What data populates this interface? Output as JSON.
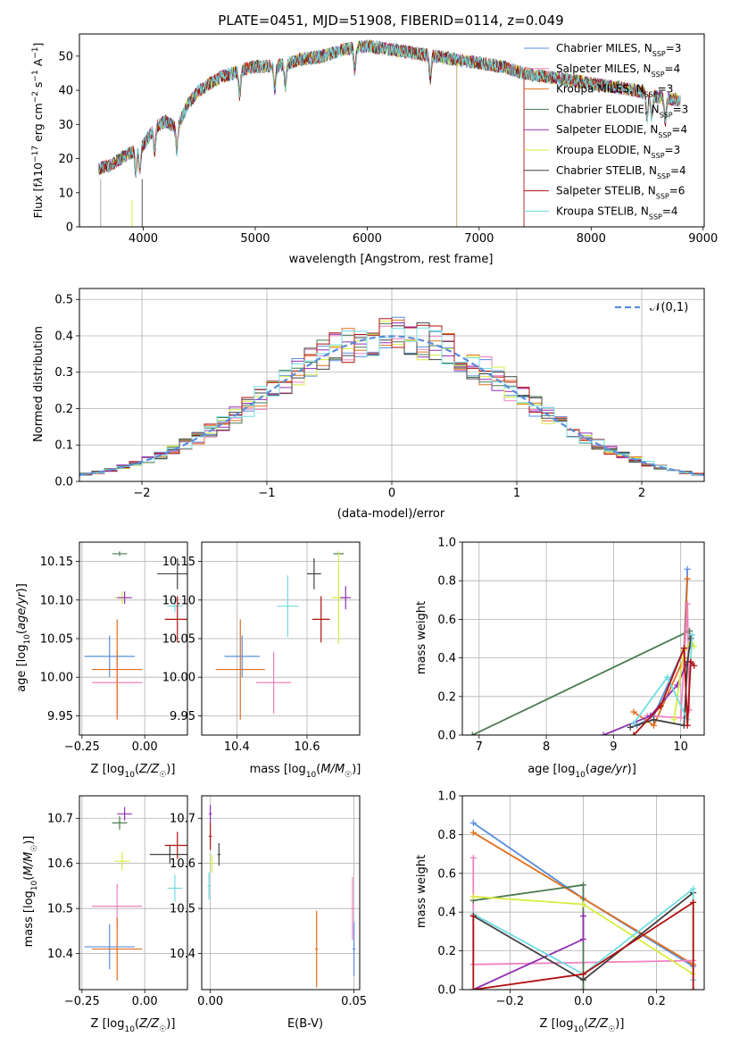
{
  "colors": {
    "Chabrier MILES": "#5a8ddc",
    "Salpeter MILES": "#ee82c0",
    "Kroupa MILES": "#e07020",
    "Chabrier ELODIE": "#4a7a50",
    "Salpeter ELODIE": "#9030b0",
    "Kroupa ELODIE": "#d8ec40",
    "Chabrier STELIB": "#404040",
    "Salpeter STELIB": "#b01010",
    "Kroupa STELIB": "#70dce0",
    "normal": "#5a8ddc"
  },
  "chart_data": [
    {
      "id": "spectrum",
      "type": "line",
      "title": "PLATE=0451, MJD=51908, FIBERID=0114, z=0.049",
      "xlabel": "wavelength [Angstrom, rest frame]",
      "ylabel": "Flux [fλ10⁻¹⁷ erg cm⁻² s⁻¹ A⁻¹]",
      "xlim": [
        3430,
        9010
      ],
      "ylim": [
        0,
        56.5
      ],
      "xticks": [
        4000,
        5000,
        6000,
        7000,
        8000,
        9000
      ],
      "yticks": [
        0,
        10,
        20,
        30,
        40,
        50
      ],
      "legend": "top-right",
      "series_names": [
        "Chabrier MILES",
        "Salpeter MILES",
        "Kroupa MILES",
        "Chabrier ELODIE",
        "Salpeter ELODIE",
        "Kroupa ELODIE",
        "Chabrier STELIB",
        "Salpeter STELIB",
        "Kroupa STELIB"
      ],
      "legend_labels": [
        {
          "name": "Chabrier MILES",
          "n": "3"
        },
        {
          "name": "Salpeter MILES",
          "n": "4"
        },
        {
          "name": "Kroupa MILES",
          "n": "3"
        },
        {
          "name": "Chabrier ELODIE",
          "n": "3"
        },
        {
          "name": "Salpeter ELODIE",
          "n": "4"
        },
        {
          "name": "Kroupa ELODIE",
          "n": "3"
        },
        {
          "name": "Chabrier STELIB",
          "n": "4"
        },
        {
          "name": "Salpeter STELIB",
          "n": "6"
        },
        {
          "name": "Kroupa STELIB",
          "n": "4"
        }
      ],
      "continuum": {
        "x": [
          3600,
          3700,
          3800,
          3900,
          4000,
          4100,
          4200,
          4300,
          4400,
          4500,
          4600,
          4700,
          4800,
          4900,
          5000,
          5200,
          5400,
          5600,
          5800,
          6000,
          6200,
          6400,
          6600,
          6800,
          7000,
          7200,
          7400,
          7600,
          7800,
          8000,
          8200,
          8400,
          8600,
          8800
        ],
        "y": [
          17,
          18,
          20,
          22,
          24,
          29,
          31,
          29,
          36,
          40,
          42,
          44,
          45,
          46,
          47,
          47,
          49,
          50,
          52,
          53,
          52,
          51,
          50,
          49,
          48,
          47,
          45,
          44,
          43,
          42,
          41,
          40,
          38,
          37
        ]
      }
    },
    {
      "id": "residual-hist",
      "type": "line",
      "xlabel": "(data-model)/error",
      "ylabel": "Normed distribution",
      "xlim": [
        -2.5,
        2.5
      ],
      "ylim": [
        0,
        0.53
      ],
      "xticks": [
        -2,
        -1,
        0,
        1,
        2
      ],
      "yticks": [
        0.0,
        0.1,
        0.2,
        0.3,
        0.4,
        0.5
      ],
      "legend_label": "𝒩(0,1)",
      "legend": "top-right",
      "normal_curve": {
        "mean": 0,
        "sigma": 1
      }
    },
    {
      "id": "age-vs-Z",
      "type": "scatter",
      "xlabel": "Z [log₁₀(Z/Z☉)]",
      "ylabel": "age  [log₁₀(age/yr)]",
      "xlim": [
        -0.26,
        0.17
      ],
      "ylim": [
        9.925,
        10.175
      ],
      "xticks": [
        -0.25,
        0.0
      ],
      "yticks": [
        9.95,
        10.0,
        10.05,
        10.1,
        10.15
      ],
      "points": [
        {
          "name": "Chabrier MILES",
          "x": -0.14,
          "xerr": 0.1,
          "y": 10.027,
          "yerr": 0.027
        },
        {
          "name": "Salpeter MILES",
          "x": -0.11,
          "xerr": 0.1,
          "y": 9.993,
          "yerr": 0.04
        },
        {
          "name": "Kroupa MILES",
          "x": -0.11,
          "xerr": 0.1,
          "y": 10.01,
          "yerr": 0.065
        },
        {
          "name": "Chabrier ELODIE",
          "x": -0.1,
          "xerr": 0.03,
          "y": 10.16,
          "yerr": 0.003
        },
        {
          "name": "Kroupa ELODIE",
          "x": -0.09,
          "xerr": 0.03,
          "y": 10.103,
          "yerr": 0.008
        },
        {
          "name": "Salpeter ELODIE",
          "x": -0.08,
          "xerr": 0.03,
          "y": 10.103,
          "yerr": 0.008
        },
        {
          "name": "Chabrier STELIB",
          "x": 0.13,
          "xerr": 0.08,
          "y": 10.134,
          "yerr": 0.02
        },
        {
          "name": "Kroupa STELIB",
          "x": 0.12,
          "xerr": 0.03,
          "y": 10.092,
          "yerr": 0.008
        },
        {
          "name": "Salpeter STELIB",
          "x": 0.13,
          "xerr": 0.05,
          "y": 10.075,
          "yerr": 0.03
        }
      ]
    },
    {
      "id": "age-vs-mass",
      "type": "scatter",
      "xlabel": "mass [log₁₀(M/M☉)]",
      "xlim": [
        10.3,
        10.75
      ],
      "ylim": [
        9.925,
        10.175
      ],
      "xticks": [
        10.4,
        10.6
      ],
      "yticks": [
        9.95,
        10.0,
        10.05,
        10.1,
        10.15
      ],
      "points": [
        {
          "name": "Chabrier MILES",
          "x": 10.415,
          "xerr": 0.05,
          "y": 10.027,
          "yerr": 0.027
        },
        {
          "name": "Kroupa MILES",
          "x": 10.41,
          "xerr": 0.07,
          "y": 10.01,
          "yerr": 0.065
        },
        {
          "name": "Salpeter MILES",
          "x": 10.505,
          "xerr": 0.05,
          "y": 9.993,
          "yerr": 0.04
        },
        {
          "name": "Kroupa STELIB",
          "x": 10.545,
          "xerr": 0.03,
          "y": 10.092,
          "yerr": 0.04
        },
        {
          "name": "Chabrier STELIB",
          "x": 10.62,
          "xerr": 0.02,
          "y": 10.134,
          "yerr": 0.02
        },
        {
          "name": "Salpeter STELIB",
          "x": 10.64,
          "xerr": 0.025,
          "y": 10.075,
          "yerr": 0.03
        },
        {
          "name": "Chabrier ELODIE",
          "x": 10.69,
          "xerr": 0.015,
          "y": 10.16,
          "yerr": 0.003
        },
        {
          "name": "Kroupa ELODIE",
          "x": 10.69,
          "xerr": 0.02,
          "y": 10.103,
          "yerr": 0.06
        },
        {
          "name": "Salpeter ELODIE",
          "x": 10.71,
          "xerr": 0.015,
          "y": 10.103,
          "yerr": 0.015
        }
      ]
    },
    {
      "id": "weight-vs-age",
      "type": "line",
      "xlabel": "age  [log₁₀(age/yr)]",
      "ylabel": "mass weight",
      "xlim": [
        6.75,
        10.35
      ],
      "ylim": [
        0,
        1
      ],
      "xticks": [
        7,
        8,
        9,
        10
      ],
      "yticks": [
        0.0,
        0.2,
        0.4,
        0.6,
        0.8,
        1.0
      ],
      "series": [
        {
          "name": "Chabrier ELODIE",
          "x": [
            6.9,
            10.13,
            10.15
          ],
          "y": [
            0.0,
            0.54,
            0.46
          ]
        },
        {
          "name": "Chabrier MILES",
          "x": [
            9.35,
            9.6,
            10.05,
            10.1
          ],
          "y": [
            0.05,
            0.1,
            0.45,
            0.86
          ]
        },
        {
          "name": "Kroupa MILES",
          "x": [
            9.3,
            9.6,
            10.05,
            10.1
          ],
          "y": [
            0.12,
            0.05,
            0.4,
            0.81
          ]
        },
        {
          "name": "Salpeter MILES",
          "x": [
            9.5,
            10.0,
            10.1,
            10.13
          ],
          "y": [
            0.1,
            0.09,
            0.68,
            0.13
          ]
        },
        {
          "name": "Salpeter ELODIE",
          "x": [
            8.85,
            9.55,
            9.95,
            10.1
          ],
          "y": [
            0.0,
            0.1,
            0.26,
            0.38
          ]
        },
        {
          "name": "Kroupa ELODIE",
          "x": [
            9.9,
            10.05,
            10.15,
            10.2
          ],
          "y": [
            0.08,
            0.44,
            0.48,
            0.46
          ]
        },
        {
          "name": "Chabrier STELIB",
          "x": [
            9.25,
            9.6,
            10.05,
            10.1,
            10.15
          ],
          "y": [
            0.04,
            0.08,
            0.05,
            0.38,
            0.5
          ]
        },
        {
          "name": "Kroupa STELIB",
          "x": [
            9.3,
            9.8,
            10.1,
            10.17
          ],
          "y": [
            0.06,
            0.3,
            0.08,
            0.52
          ]
        },
        {
          "name": "Salpeter STELIB",
          "x": [
            9.3,
            9.7,
            10.05,
            10.1,
            10.15,
            10.2
          ],
          "y": [
            0.0,
            0.15,
            0.45,
            0.05,
            0.38,
            0.36
          ]
        }
      ]
    },
    {
      "id": "mass-vs-Z",
      "type": "scatter",
      "xlabel": "Z [log₁₀(Z/Z☉)]",
      "ylabel": "mass [log₁₀(M/M☉)]",
      "xlim": [
        -0.26,
        0.17
      ],
      "ylim": [
        10.32,
        10.75
      ],
      "xticks": [
        -0.25,
        0.0
      ],
      "yticks": [
        10.4,
        10.5,
        10.6,
        10.7
      ],
      "points": [
        {
          "name": "Salpeter ELODIE",
          "x": -0.08,
          "xerr": 0.03,
          "y": 10.71,
          "yerr": 0.015
        },
        {
          "name": "Chabrier ELODIE",
          "x": -0.1,
          "xerr": 0.03,
          "y": 10.69,
          "yerr": 0.015
        },
        {
          "name": "Salpeter STELIB",
          "x": 0.13,
          "xerr": 0.05,
          "y": 10.64,
          "yerr": 0.03
        },
        {
          "name": "Chabrier STELIB",
          "x": 0.1,
          "xerr": 0.08,
          "y": 10.62,
          "yerr": 0.02
        },
        {
          "name": "Kroupa ELODIE",
          "x": -0.09,
          "xerr": 0.03,
          "y": 10.605,
          "yerr": 0.02
        },
        {
          "name": "Kroupa STELIB",
          "x": 0.12,
          "xerr": 0.03,
          "y": 10.545,
          "yerr": 0.03
        },
        {
          "name": "Salpeter MILES",
          "x": -0.11,
          "xerr": 0.1,
          "y": 10.505,
          "yerr": 0.05
        },
        {
          "name": "Chabrier MILES",
          "x": -0.14,
          "xerr": 0.1,
          "y": 10.415,
          "yerr": 0.05
        },
        {
          "name": "Kroupa MILES",
          "x": -0.11,
          "xerr": 0.1,
          "y": 10.41,
          "yerr": 0.07
        }
      ]
    },
    {
      "id": "mass-vs-ebv",
      "type": "scatter",
      "xlabel": "E(B-V)",
      "xlim": [
        -0.003,
        0.052
      ],
      "ylim": [
        10.32,
        10.75
      ],
      "xticks": [
        0.0,
        0.05
      ],
      "yticks": [
        10.4,
        10.5,
        10.6,
        10.7
      ],
      "points": [
        {
          "name": "Salpeter ELODIE",
          "x": 0.0,
          "xerr": 0.0005,
          "y": 10.71,
          "yerr": 0.02
        },
        {
          "name": "Salpeter STELIB",
          "x": 0.0,
          "xerr": 0.0005,
          "y": 10.66,
          "yerr": 0.03
        },
        {
          "name": "Kroupa ELODIE",
          "x": 0.0005,
          "xerr": 0.0005,
          "y": 10.6,
          "yerr": 0.02
        },
        {
          "name": "Chabrier STELIB",
          "x": 0.003,
          "xerr": 0.0005,
          "y": 10.62,
          "yerr": 0.025
        },
        {
          "name": "Kroupa STELIB",
          "x": -0.0005,
          "xerr": 0.0005,
          "y": 10.55,
          "yerr": 0.03
        },
        {
          "name": "Kroupa MILES",
          "x": 0.037,
          "xerr": 0.0005,
          "y": 10.41,
          "yerr": 0.085
        },
        {
          "name": "Salpeter MILES",
          "x": 0.0495,
          "xerr": 0.0005,
          "y": 10.5,
          "yerr": 0.07
        },
        {
          "name": "Chabrier MILES",
          "x": 0.05,
          "xerr": 0.0005,
          "y": 10.41,
          "yerr": 0.06
        }
      ]
    },
    {
      "id": "weight-vs-Z",
      "type": "line",
      "xlabel": "Z [log₁₀(Z/Z☉)]",
      "ylabel": "mass weight",
      "xlim": [
        -0.33,
        0.33
      ],
      "ylim": [
        0,
        1
      ],
      "xticks": [
        -0.2,
        0.0,
        0.2
      ],
      "yticks": [
        0.0,
        0.2,
        0.4,
        0.6,
        0.8,
        1.0
      ],
      "series": [
        {
          "name": "Chabrier MILES",
          "x": [
            -0.3,
            0.0,
            0.3
          ],
          "y": [
            0.86,
            0.47,
            0.12
          ]
        },
        {
          "name": "Kroupa MILES",
          "x": [
            -0.3,
            0.0,
            0.3
          ],
          "y": [
            0.81,
            0.47,
            0.13
          ]
        },
        {
          "name": "Salpeter MILES",
          "x": [
            -0.3,
            -0.3,
            0.3,
            0.3
          ],
          "y": [
            0.68,
            0.13,
            0.15,
            0.05
          ]
        },
        {
          "name": "Chabrier ELODIE",
          "x": [
            -0.3,
            0.0,
            0.0
          ],
          "y": [
            0.46,
            0.54,
            0.0
          ]
        },
        {
          "name": "Kroupa ELODIE",
          "x": [
            -0.3,
            0.0,
            0.3,
            0.3
          ],
          "y": [
            0.48,
            0.44,
            0.08,
            0.5
          ]
        },
        {
          "name": "Salpeter ELODIE",
          "x": [
            -0.3,
            0.0,
            0.0
          ],
          "y": [
            0.0,
            0.26,
            0.38
          ]
        },
        {
          "name": "Chabrier STELIB",
          "x": [
            -0.3,
            0.0,
            0.3
          ],
          "y": [
            0.38,
            0.05,
            0.5
          ]
        },
        {
          "name": "Kroupa STELIB",
          "x": [
            -0.3,
            0.0,
            0.3,
            0.3
          ],
          "y": [
            0.39,
            0.08,
            0.52,
            0.05
          ]
        },
        {
          "name": "Salpeter STELIB",
          "x": [
            -0.3,
            -0.3,
            0.0,
            0.3,
            0.3
          ],
          "y": [
            0.38,
            0.0,
            0.08,
            0.45,
            0.0
          ]
        }
      ]
    }
  ]
}
